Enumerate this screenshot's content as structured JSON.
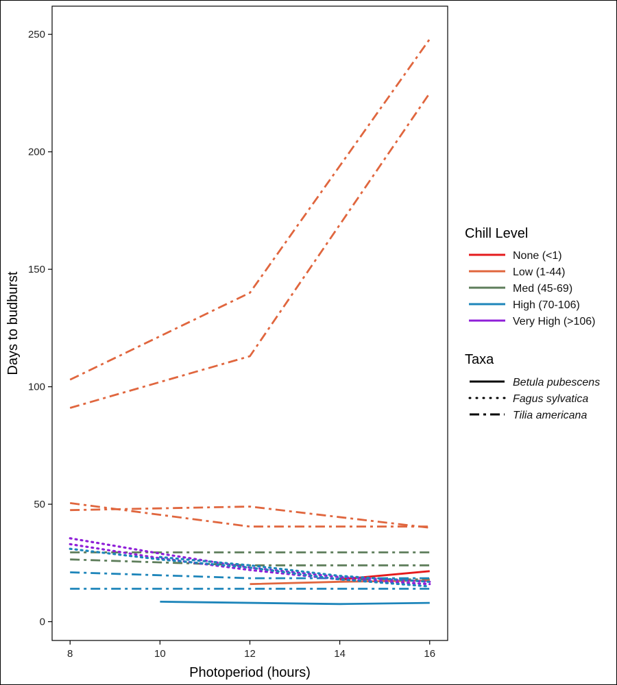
{
  "chart_data": {
    "type": "line",
    "xlabel": "Photoperiod (hours)",
    "ylabel": "Days to budburst",
    "xlim": [
      7.6,
      16.4
    ],
    "ylim": [
      -8,
      262
    ],
    "xticks": [
      8,
      10,
      12,
      14,
      16
    ],
    "yticks": [
      0,
      50,
      100,
      150,
      200,
      250
    ],
    "grid": false,
    "legend_placement": "right",
    "chill_legend": {
      "title": "Chill Level",
      "entries": [
        {
          "key": "none",
          "label": "None (<1)",
          "color": "#e41a1c"
        },
        {
          "key": "low",
          "label": "Low (1-44)",
          "color": "#e0663e"
        },
        {
          "key": "med",
          "label": "Med (45-69)",
          "color": "#5d7d5a"
        },
        {
          "key": "high",
          "label": "High (70-106)",
          "color": "#1d85ba"
        },
        {
          "key": "veryhigh",
          "label": "Very High (>106)",
          "color": "#8f1fd8"
        }
      ]
    },
    "taxa_legend": {
      "title": "Taxa",
      "entries": [
        {
          "key": "betula",
          "label": "Betula pubescens",
          "linestyle": "solid"
        },
        {
          "key": "fagus",
          "label": "Fagus sylvatica",
          "linestyle": "dotted"
        },
        {
          "key": "tilia",
          "label": "Tilia americana",
          "linestyle": "dashdot"
        }
      ]
    },
    "series": [
      {
        "chill": "low",
        "taxa": "tilia",
        "x": [
          8,
          12,
          16
        ],
        "y": [
          103,
          140,
          248
        ]
      },
      {
        "chill": "low",
        "taxa": "tilia",
        "x": [
          8,
          12,
          16
        ],
        "y": [
          91,
          113,
          225
        ]
      },
      {
        "chill": "low",
        "taxa": "tilia",
        "x": [
          8,
          12,
          16
        ],
        "y": [
          47.5,
          49,
          40
        ]
      },
      {
        "chill": "low",
        "taxa": "tilia",
        "x": [
          8,
          12,
          16
        ],
        "y": [
          50.5,
          40.5,
          40.5
        ]
      },
      {
        "chill": "med",
        "taxa": "tilia",
        "x": [
          8,
          12,
          16
        ],
        "y": [
          29.5,
          29.5,
          29.5
        ]
      },
      {
        "chill": "med",
        "taxa": "tilia",
        "x": [
          8,
          12,
          16
        ],
        "y": [
          26.5,
          24,
          24
        ]
      },
      {
        "chill": "med",
        "taxa": "tilia",
        "x": [
          14,
          16
        ],
        "y": [
          18,
          18
        ]
      },
      {
        "chill": "high",
        "taxa": "tilia",
        "x": [
          8,
          12,
          16
        ],
        "y": [
          21,
          18.5,
          18.5
        ]
      },
      {
        "chill": "high",
        "taxa": "tilia",
        "x": [
          8,
          12,
          16
        ],
        "y": [
          14,
          14,
          14
        ]
      },
      {
        "chill": "high",
        "taxa": "betula",
        "x": [
          10,
          14,
          16
        ],
        "y": [
          8.5,
          7.5,
          8
        ]
      },
      {
        "chill": "none",
        "taxa": "betula",
        "x": [
          14,
          16
        ],
        "y": [
          18,
          21.5
        ]
      },
      {
        "chill": "low",
        "taxa": "betula",
        "x": [
          12,
          14,
          16
        ],
        "y": [
          16,
          17,
          17.5
        ]
      },
      {
        "chill": "veryhigh",
        "taxa": "fagus",
        "x": [
          8,
          10,
          12,
          14,
          16
        ],
        "y": [
          35.5,
          29,
          23,
          19,
          17
        ]
      },
      {
        "chill": "veryhigh",
        "taxa": "fagus",
        "x": [
          8,
          10,
          12,
          14,
          16
        ],
        "y": [
          33,
          27,
          22,
          18,
          16
        ]
      },
      {
        "chill": "high",
        "taxa": "fagus",
        "x": [
          8,
          10,
          12,
          14,
          16
        ],
        "y": [
          31,
          26.5,
          23,
          18,
          15
        ]
      },
      {
        "chill": "high",
        "taxa": "fagus",
        "x": [
          10,
          12,
          14,
          16
        ],
        "y": [
          27.5,
          24,
          19.5,
          17
        ]
      }
    ]
  }
}
